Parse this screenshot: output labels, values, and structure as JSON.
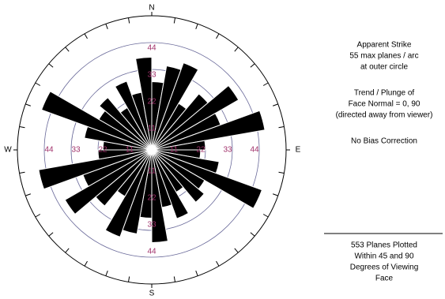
{
  "chart_data": {
    "type": "rose",
    "directions": [
      "N",
      "E",
      "S",
      "W"
    ],
    "bin_width": 10,
    "values": [
      28,
      35,
      38,
      22,
      30,
      41,
      30,
      47,
      22,
      20,
      28,
      48,
      25,
      28,
      20,
      30,
      24,
      38,
      28,
      35,
      38,
      22,
      30,
      41,
      30,
      47,
      22,
      20,
      28,
      48,
      25,
      28,
      20,
      30,
      24,
      38
    ],
    "color": "#000000",
    "rlim": [
      0,
      55
    ],
    "rticks": [
      11,
      22,
      33,
      44
    ],
    "ring_label_color": "#a0306a",
    "notes": [
      [
        "Apparent Strike",
        "55 max planes / arc",
        "at outer circle"
      ],
      [
        "Trend / Plunge of",
        "Face Normal =  0, 90",
        "(directed away from viewer)"
      ],
      [
        "No Bias Correction"
      ]
    ],
    "footer": [
      "553 Planes Plotted",
      "Within 45 and 90",
      "Degrees of Viewing",
      "Face"
    ]
  }
}
